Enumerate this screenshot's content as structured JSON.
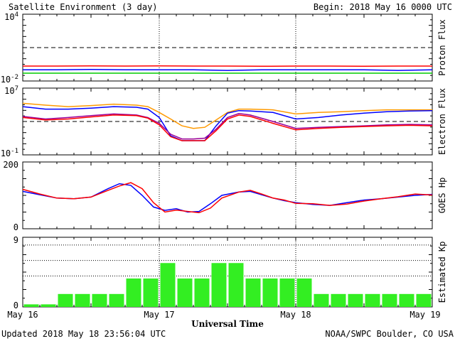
{
  "header": {
    "title": "Satellite Environment (3 day)",
    "begin": "Begin:  2018 May 16 0000 UTC"
  },
  "footer": {
    "updated": "Updated 2018 May 18 23:56:04 UTC",
    "source": "NOAA/SWPC Boulder, CO USA"
  },
  "chart_data": [
    {
      "type": "line",
      "title": "",
      "ylabel": "Proton Flux",
      "yscale": "log",
      "ylim": [
        0.01,
        10000
      ],
      "yticks": [
        {
          "label_base": "10",
          "label_exp": "4",
          "value": 10000
        },
        {
          "label_base": "10",
          "label_exp": "-2",
          "value": 0.01
        }
      ],
      "threshold": 10,
      "series": [
        {
          "color": "#ff0000",
          "x": [
            0,
            6,
            12,
            18,
            24,
            30,
            36,
            42,
            48,
            54,
            60,
            66,
            72
          ],
          "values": [
            0.22,
            0.22,
            0.23,
            0.22,
            0.23,
            0.22,
            0.22,
            0.21,
            0.22,
            0.22,
            0.21,
            0.22,
            0.22
          ]
        },
        {
          "color": "#0000ff",
          "x": [
            0,
            6,
            12,
            18,
            24,
            30,
            36,
            42,
            48,
            54,
            60,
            66,
            72
          ],
          "values": [
            0.1,
            0.1,
            0.11,
            0.1,
            0.1,
            0.1,
            0.09,
            0.1,
            0.1,
            0.1,
            0.1,
            0.09,
            0.1
          ]
        },
        {
          "color": "#00cc00",
          "x": [
            0,
            6,
            12,
            18,
            24,
            30,
            36,
            42,
            48,
            54,
            60,
            66,
            72
          ],
          "values": [
            0.05,
            0.05,
            0.05,
            0.05,
            0.05,
            0.05,
            0.05,
            0.05,
            0.05,
            0.05,
            0.05,
            0.05,
            0.05
          ]
        }
      ]
    },
    {
      "type": "line",
      "title": "",
      "ylabel": "Electron Flux",
      "yscale": "log",
      "ylim": [
        0.1,
        10000000
      ],
      "yticks": [
        {
          "label_base": "10",
          "label_exp": "7",
          "value": 10000000
        },
        {
          "label_base": "10",
          "label_exp": "-1",
          "value": 0.1
        }
      ],
      "threshold": 1000,
      "series": [
        {
          "color": "#ff9900",
          "x": [
            0,
            4,
            8,
            12,
            16,
            20,
            22,
            24,
            26,
            28,
            30,
            32,
            34,
            36,
            38,
            40,
            44,
            48,
            52,
            56,
            60,
            64,
            68,
            72
          ],
          "values": [
            150000,
            90000,
            60000,
            80000,
            120000,
            90000,
            60000,
            12000,
            2000,
            300,
            150,
            200,
            1500,
            12000,
            30000,
            30000,
            25000,
            8000,
            12000,
            15000,
            20000,
            25000,
            25000,
            25000
          ]
        },
        {
          "color": "#0000ff",
          "x": [
            0,
            4,
            8,
            12,
            16,
            20,
            22,
            24,
            26,
            28,
            30,
            32,
            34,
            36,
            38,
            40,
            44,
            48,
            52,
            56,
            60,
            64,
            68,
            72
          ],
          "values": [
            60000,
            30000,
            30000,
            40000,
            60000,
            50000,
            30000,
            3000,
            20,
            5,
            5,
            5,
            300,
            10000,
            20000,
            18000,
            12000,
            2000,
            3000,
            6000,
            10000,
            15000,
            18000,
            20000
          ]
        },
        {
          "color": "#990099",
          "x": [
            0,
            4,
            8,
            12,
            16,
            20,
            22,
            24,
            26,
            28,
            30,
            32,
            34,
            36,
            38,
            40,
            44,
            48,
            52,
            56,
            60,
            64,
            68,
            72
          ],
          "values": [
            4000,
            2000,
            3000,
            5000,
            8000,
            6000,
            3000,
            600,
            30,
            8,
            8,
            10,
            120,
            3000,
            9000,
            6000,
            1000,
            150,
            200,
            250,
            300,
            400,
            450,
            400
          ]
        },
        {
          "color": "#ff0000",
          "x": [
            0,
            4,
            8,
            12,
            16,
            20,
            22,
            24,
            26,
            28,
            30,
            32,
            34,
            36,
            38,
            40,
            44,
            48,
            52,
            56,
            60,
            64,
            68,
            72
          ],
          "values": [
            3000,
            1500,
            2000,
            3500,
            6000,
            5000,
            2500,
            400,
            15,
            5,
            5,
            5,
            80,
            2000,
            6000,
            4000,
            600,
            100,
            150,
            200,
            250,
            300,
            350,
            300
          ]
        }
      ]
    },
    {
      "type": "line",
      "title": "",
      "ylabel": "GOES Hp",
      "ylim": [
        0,
        200
      ],
      "yticks": [
        {
          "label": "200",
          "value": 200
        },
        {
          "label": "0",
          "value": 0
        }
      ],
      "series": [
        {
          "color": "#0000ff",
          "x": [
            0,
            3,
            6,
            9,
            12,
            15,
            17,
            19,
            21,
            23,
            25,
            27,
            29,
            31,
            33,
            35,
            38,
            40,
            42,
            44,
            46,
            48,
            51,
            54,
            57,
            60,
            63,
            66,
            69,
            72
          ],
          "values": [
            112,
            102,
            92,
            90,
            95,
            120,
            135,
            130,
            100,
            65,
            55,
            60,
            50,
            52,
            75,
            100,
            110,
            112,
            102,
            92,
            84,
            78,
            73,
            70,
            78,
            86,
            90,
            95,
            100,
            103
          ]
        },
        {
          "color": "#ff0000",
          "x": [
            0,
            3,
            6,
            9,
            12,
            15,
            17,
            19,
            21,
            23,
            25,
            27,
            29,
            31,
            33,
            35,
            38,
            40,
            42,
            44,
            46,
            48,
            51,
            54,
            57,
            60,
            63,
            66,
            69,
            72
          ],
          "values": [
            118,
            104,
            92,
            90,
            95,
            115,
            128,
            138,
            120,
            78,
            50,
            56,
            52,
            48,
            62,
            92,
            110,
            115,
            104,
            92,
            86,
            76,
            75,
            70,
            74,
            83,
            90,
            96,
            104,
            101
          ]
        }
      ]
    },
    {
      "type": "bar",
      "title": "",
      "ylabel": "Estimated Kp",
      "ylim": [
        0,
        9
      ],
      "yticks": [
        {
          "label": "9",
          "value": 9
        },
        {
          "label": "0",
          "value": 0
        }
      ],
      "gridlines": [
        4,
        6,
        8
      ],
      "color": "#33ee22",
      "categories": [
        "May 16 00",
        "May 16 03",
        "May 16 06",
        "May 16 09",
        "May 16 12",
        "May 16 15",
        "May 16 18",
        "May 16 21",
        "May 17 00",
        "May 17 03",
        "May 17 06",
        "May 17 09",
        "May 17 12",
        "May 17 15",
        "May 17 18",
        "May 17 21",
        "May 18 00",
        "May 18 03",
        "May 18 06",
        "May 18 09",
        "May 18 12",
        "May 18 15",
        "May 18 18",
        "May 18 21"
      ],
      "values": [
        0.33,
        0.33,
        1.67,
        1.67,
        1.67,
        1.67,
        3.67,
        3.67,
        5.67,
        3.67,
        3.67,
        5.67,
        5.67,
        3.67,
        3.67,
        3.67,
        3.67,
        1.67,
        1.67,
        1.67,
        1.67,
        1.67,
        1.67,
        1.67
      ]
    }
  ],
  "xaxis": {
    "label": "Universal Time",
    "ticks": [
      {
        "label": "May 16",
        "hour": 0
      },
      {
        "label": "May 17",
        "hour": 24
      },
      {
        "label": "May 18",
        "hour": 48
      },
      {
        "label": "May 19",
        "hour": 72
      }
    ],
    "range_hours": [
      0,
      72
    ]
  }
}
